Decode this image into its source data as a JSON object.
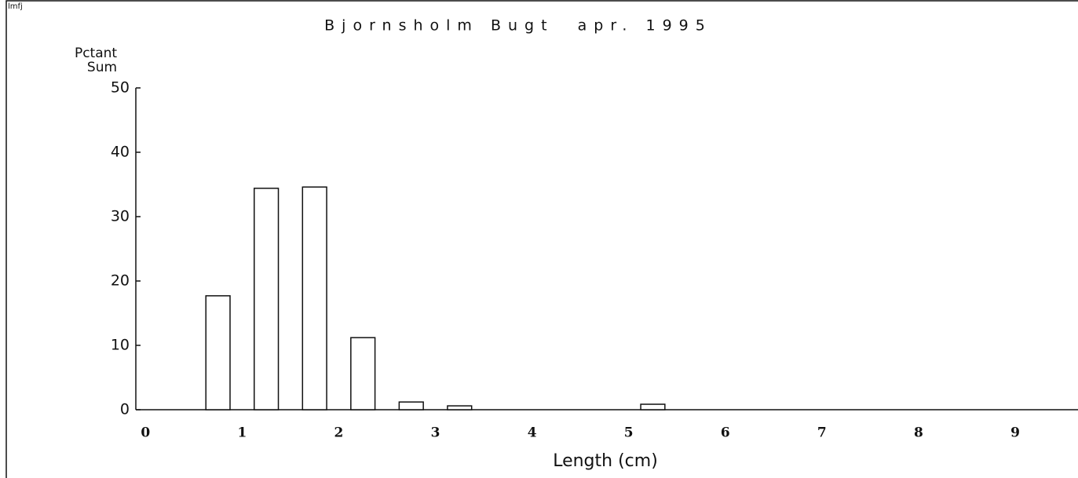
{
  "chart_data": {
    "type": "bar",
    "corner_label": "lmfj",
    "title": "Bjornsholm Bugt  apr. 1995",
    "ylabel": [
      "Pctant",
      "Sum"
    ],
    "xlabel": "Length (cm)",
    "x": [
      0.75,
      1.25,
      1.75,
      2.25,
      2.75,
      3.25,
      5.25
    ],
    "values": [
      17.7,
      34.4,
      34.6,
      11.2,
      1.2,
      0.6,
      0.85
    ],
    "color": "#ffffff",
    "xlim": [
      -0.1,
      9.65
    ],
    "xticks": [
      0,
      1,
      2,
      3,
      4,
      5,
      6,
      7,
      8,
      9
    ],
    "ylim": [
      0,
      50
    ],
    "yticks": [
      0,
      10,
      20,
      30,
      40,
      50
    ]
  }
}
